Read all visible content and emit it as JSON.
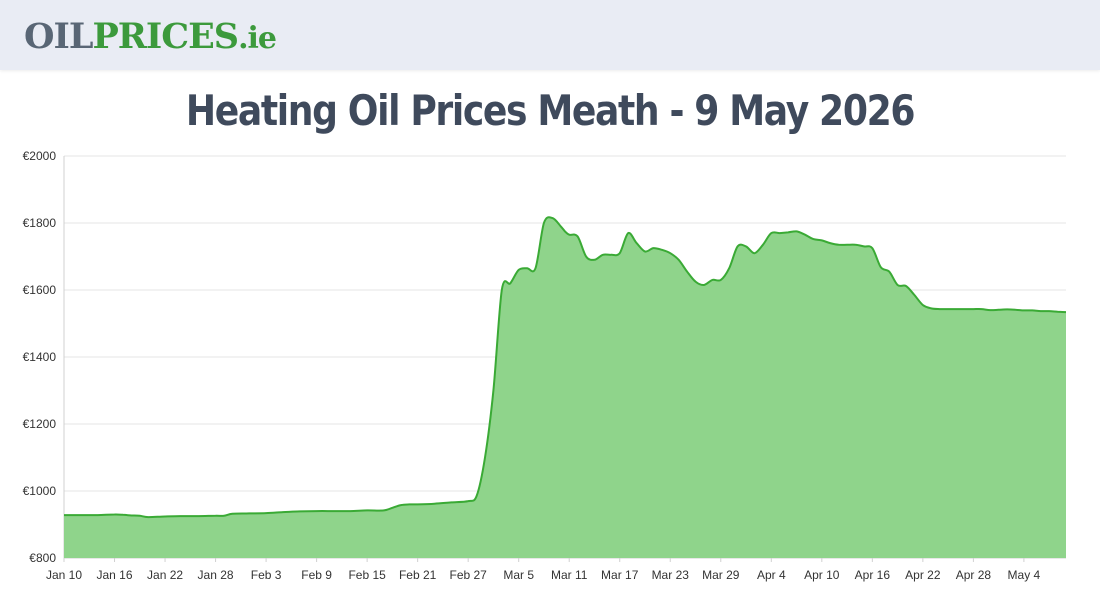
{
  "header": {
    "logo_part1": "OIL",
    "logo_part2": "PRICES",
    "logo_part3": ".ie"
  },
  "colors": {
    "header_bg": "#e9ecf4",
    "logo_grey": "#596675",
    "logo_green": "#3c9a3c",
    "title": "#3f4a5c",
    "line": "#3aaa35",
    "area": "#8fd48b"
  },
  "chart_data": {
    "type": "area",
    "title": "Heating Oil Prices Meath - 9 May 2026",
    "xlabel": "",
    "ylabel": "",
    "ylim": [
      800,
      2000
    ],
    "y_ticks": [
      800,
      1000,
      1200,
      1400,
      1600,
      1800,
      2000
    ],
    "y_tick_labels": [
      "€800",
      "€1000",
      "€1200",
      "€1400",
      "€1600",
      "€1800",
      "€2000"
    ],
    "x_tick_labels": [
      "Jan 10",
      "Jan 16",
      "Jan 22",
      "Jan 28",
      "Feb 3",
      "Feb 9",
      "Feb 15",
      "Feb 21",
      "Feb 27",
      "Mar 5",
      "Mar 11",
      "Mar 17",
      "Mar 23",
      "Mar 29",
      "Apr 4",
      "Apr 10",
      "Apr 16",
      "Apr 22",
      "Apr 28",
      "May 4"
    ],
    "x_tick_days": [
      0,
      6,
      12,
      18,
      24,
      30,
      36,
      42,
      48,
      54,
      60,
      66,
      72,
      78,
      84,
      90,
      96,
      102,
      108,
      114
    ],
    "grid": true,
    "legend": "none",
    "series": [
      {
        "x": [
          0,
          2,
          4,
          6,
          7,
          8,
          9,
          10,
          12,
          14,
          16,
          18,
          19,
          20,
          22,
          24,
          26,
          28,
          30,
          32,
          34,
          36,
          38,
          39,
          40,
          41,
          42,
          44,
          46,
          48,
          49,
          50,
          51,
          52,
          53,
          54,
          55,
          56,
          57,
          58,
          59,
          59.5,
          60,
          61,
          62,
          63,
          64,
          65,
          66,
          67,
          68,
          69,
          70,
          71,
          72,
          73,
          74,
          75,
          76,
          77,
          78,
          79,
          80,
          81,
          82,
          83,
          84,
          85,
          86,
          87,
          88,
          89,
          90,
          91,
          92,
          93,
          94,
          95,
          96,
          97,
          98,
          99,
          100,
          101,
          102,
          103,
          104,
          105,
          106,
          107,
          108,
          109,
          110,
          111,
          112,
          113,
          114,
          115,
          116,
          117,
          118,
          119
        ],
        "values": [
          928,
          928,
          928,
          930,
          929,
          927,
          926,
          922,
          924,
          925,
          925,
          926,
          926,
          932,
          933,
          934,
          937,
          939,
          940,
          940,
          940,
          942,
          942,
          950,
          958,
          960,
          960,
          962,
          966,
          970,
          985,
          1100,
          1300,
          1600,
          1620,
          1660,
          1665,
          1665,
          1800,
          1815,
          1790,
          1775,
          1765,
          1760,
          1700,
          1690,
          1705,
          1705,
          1710,
          1770,
          1740,
          1715,
          1725,
          1720,
          1710,
          1690,
          1655,
          1625,
          1615,
          1630,
          1630,
          1665,
          1730,
          1730,
          1710,
          1735,
          1770,
          1770,
          1772,
          1775,
          1765,
          1752,
          1748,
          1740,
          1735,
          1735,
          1735,
          1730,
          1725,
          1668,
          1655,
          1615,
          1612,
          1585,
          1555,
          1545,
          1543,
          1543,
          1543,
          1543,
          1543,
          1543,
          1540,
          1541,
          1542,
          1541,
          1539,
          1539,
          1537,
          1537,
          1535,
          1534
        ]
      }
    ]
  }
}
